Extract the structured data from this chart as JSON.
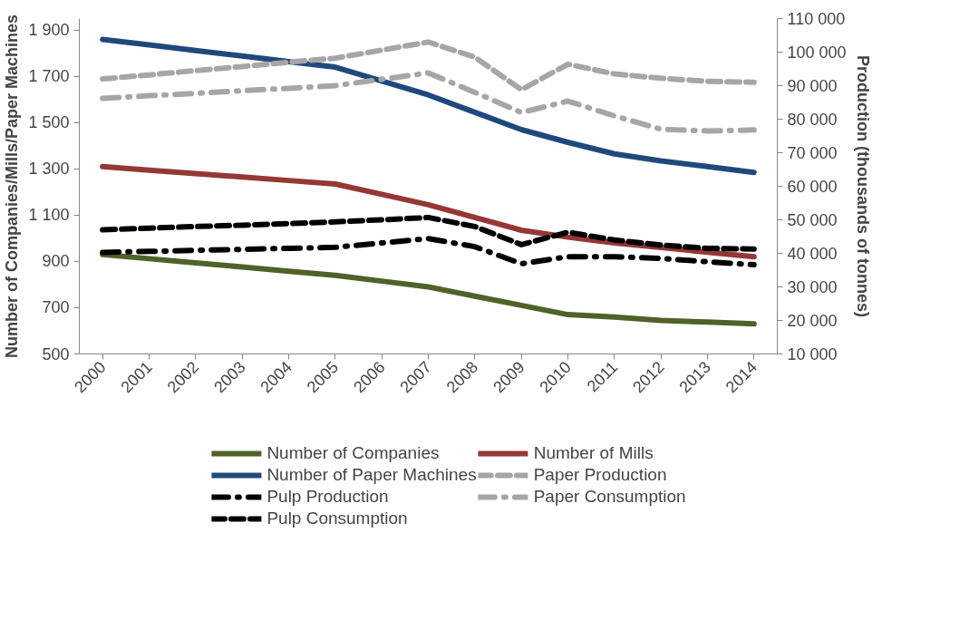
{
  "chart_data": {
    "type": "line",
    "ylabel": "Number of Companies/Mills/Paper Machines",
    "y2label": "Production (thousands of tonnes)",
    "categories": [
      "2000",
      "2001",
      "2002",
      "2003",
      "2004",
      "2005",
      "2006",
      "2007",
      "2008",
      "2009",
      "2010",
      "2011",
      "2012",
      "2013",
      "2014"
    ],
    "ylim": [
      500,
      1950
    ],
    "yticks": [
      500,
      700,
      900,
      {
        "value": 1100,
        "label": "1 100"
      },
      {
        "value": 1300,
        "label": "1 300"
      },
      {
        "value": 1500,
        "label": "1 500"
      },
      {
        "value": 1700,
        "label": "1 700"
      },
      {
        "value": 1900,
        "label": "1 900"
      }
    ],
    "y2lim": [
      10000,
      110000
    ],
    "y2ticks": [
      {
        "value": 10000,
        "label": "10 000"
      },
      {
        "value": 20000,
        "label": "20 000"
      },
      {
        "value": 30000,
        "label": "30 000"
      },
      {
        "value": 40000,
        "label": "40 000"
      },
      {
        "value": 50000,
        "label": "50 000"
      },
      {
        "value": 60000,
        "label": "60 000"
      },
      {
        "value": 70000,
        "label": "70 000"
      },
      {
        "value": 80000,
        "label": "80 000"
      },
      {
        "value": 90000,
        "label": "90 000"
      },
      {
        "value": 100000,
        "label": "100 000"
      },
      {
        "value": 110000,
        "label": "110 000"
      }
    ],
    "grid": false,
    "legend": "bottom",
    "series": [
      {
        "name": "Number of Companies",
        "color": "#4f6228",
        "line_style": "solid",
        "values": [
          930,
          912,
          894,
          876,
          858,
          840,
          815,
          790,
          750,
          710,
          670,
          660,
          645,
          638,
          630
        ]
      },
      {
        "name": "Number of Mills",
        "color": "#953735",
        "line_style": "solid",
        "values": [
          1310,
          1295,
          1280,
          1265,
          1250,
          1235,
          1190,
          1145,
          1090,
          1035,
          1005,
          980,
          960,
          940,
          920
        ]
      },
      {
        "name": "Number of Paper Machines",
        "color": "#1f497d",
        "line_style": "solid",
        "values": [
          1860,
          1836,
          1812,
          1788,
          1764,
          1740,
          1680,
          1620,
          1545,
          1470,
          1415,
          1365,
          1335,
          1310,
          1285
        ]
      },
      {
        "name": "Paper Production",
        "color": "#a6a6a6",
        "line_style": "dashed",
        "axis": "y2",
        "values": [
          92000,
          93200,
          94500,
          95700,
          97000,
          98200,
          100600,
          103000,
          98500,
          88800,
          96400,
          93500,
          92200,
          91300,
          91000
        ]
      },
      {
        "name": "Pulp Production",
        "color": "#000000",
        "line_style": "dashdot",
        "axis": "y2",
        "values": [
          40300,
          40600,
          40900,
          41200,
          41500,
          41800,
          43100,
          44400,
          42000,
          36900,
          39000,
          39000,
          38500,
          37500,
          36600
        ]
      },
      {
        "name": "Paper Consumption",
        "color": "#a6a6a6",
        "line_style": "dashdot",
        "axis": "y2",
        "values": [
          86200,
          87000,
          87700,
          88500,
          89200,
          90000,
          91900,
          93800,
          88000,
          82000,
          85400,
          81000,
          77000,
          76500,
          76800
        ]
      },
      {
        "name": "Pulp Consumption",
        "color": "#000000",
        "line_style": "dashed",
        "axis": "y2",
        "values": [
          47000,
          47500,
          48000,
          48400,
          48900,
          49400,
          50000,
          50700,
          48000,
          42600,
          46300,
          44000,
          42500,
          41500,
          41300
        ]
      }
    ]
  }
}
